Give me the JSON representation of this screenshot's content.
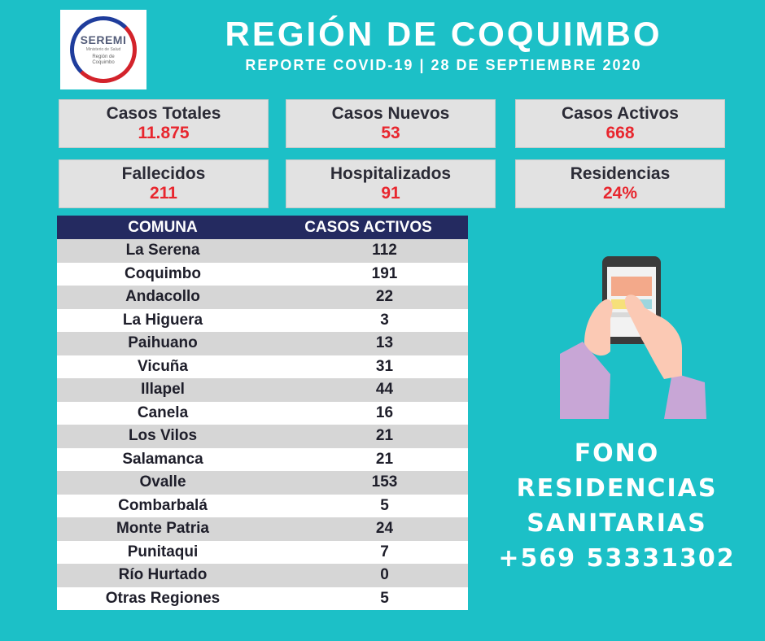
{
  "logo": {
    "title": "SEREMI",
    "subtitle": "Ministerio de Salud",
    "region": "Región de Coquimbo"
  },
  "header": {
    "title": "REGIÓN DE COQUIMBO",
    "subtitle": "REPORTE COVID-19 | 28 DE SEPTIEMBRE 2020"
  },
  "stats": [
    {
      "label": "Casos Totales",
      "value": "11.875"
    },
    {
      "label": "Casos Nuevos",
      "value": "53"
    },
    {
      "label": "Casos Activos",
      "value": "668"
    },
    {
      "label": "Fallecidos",
      "value": "211"
    },
    {
      "label": "Hospitalizados",
      "value": "91"
    },
    {
      "label": "Residencias",
      "value": "24%"
    }
  ],
  "table": {
    "headers": [
      "COMUNA",
      "CASOS ACTIVOS"
    ],
    "rows": [
      [
        "La Serena",
        "112"
      ],
      [
        "Coquimbo",
        "191"
      ],
      [
        "Andacollo",
        "22"
      ],
      [
        "La Higuera",
        "3"
      ],
      [
        "Paihuano",
        "13"
      ],
      [
        "Vicuña",
        "31"
      ],
      [
        "Illapel",
        "44"
      ],
      [
        "Canela",
        "16"
      ],
      [
        "Los Vilos",
        "21"
      ],
      [
        "Salamanca",
        "21"
      ],
      [
        "Ovalle",
        "153"
      ],
      [
        "Combarbalá",
        "5"
      ],
      [
        "Monte Patria",
        "24"
      ],
      [
        "Punitaqui",
        "7"
      ],
      [
        "Río Hurtado",
        "0"
      ],
      [
        "Otras Regiones",
        "5"
      ]
    ]
  },
  "contact": {
    "line1": "FONO RESIDENCIAS",
    "line2": "SANITARIAS",
    "phone": "+569 53331302"
  },
  "colors": {
    "background": "#1cc0c7",
    "header_row": "#242a60",
    "value": "#e8262e"
  },
  "icons": {
    "illustration": "hand-holding-phone-icon"
  }
}
